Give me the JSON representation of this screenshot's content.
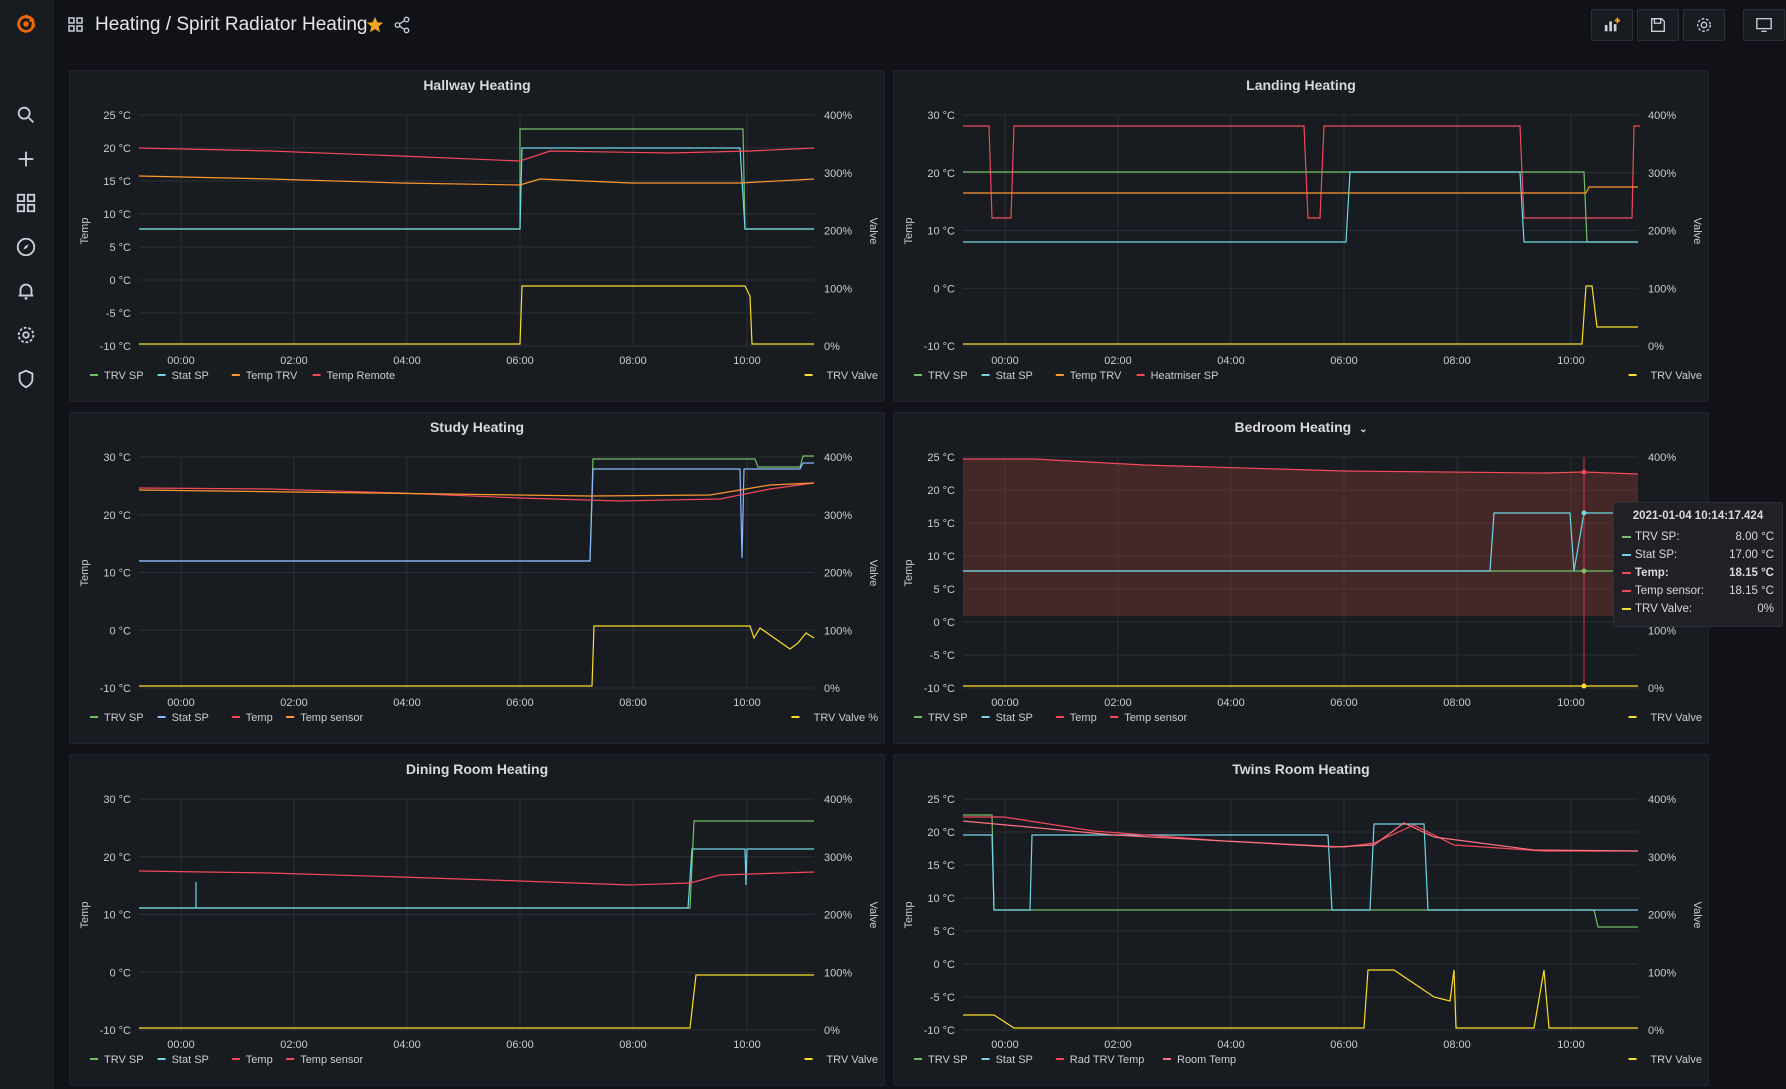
{
  "header": {
    "title": "Heating / Spirit Radiator Heating"
  },
  "colors": {
    "green": "#73bf69",
    "blue": "#8ab8ff",
    "orange": "#ff9830",
    "red": "#f2495c",
    "yellow": "#fade2a",
    "cyan": "#70d6e6",
    "salmon": "#ff7383",
    "rust": "#e0752d",
    "accent": "#f5a623",
    "grid": "#2c2f35",
    "text": "#cccccf"
  },
  "xticks": [
    "00:00",
    "02:00",
    "04:00",
    "06:00",
    "08:00",
    "10:00"
  ],
  "panels": [
    {
      "title": "Hallway Heating",
      "has_dropdown": false,
      "y_left": {
        "label": "Temp",
        "ticks": [
          "25 °C",
          "20 °C",
          "15 °C",
          "10 °C",
          "5 °C",
          "0 °C",
          "-5 °C",
          "-10 °C"
        ]
      },
      "y_right": {
        "label": "Valve",
        "ticks": [
          "400%",
          "300%",
          "200%",
          "100%",
          "0%"
        ]
      },
      "legend_left": [
        {
          "name": "TRV SP",
          "color": "green"
        },
        {
          "name": "Stat SP",
          "color": "cyan"
        },
        {
          "name": "Temp TRV",
          "color": "orange"
        },
        {
          "name": "Temp Remote",
          "color": "red"
        }
      ],
      "legend_right": [
        {
          "name": "TRV Valve",
          "color": "yellow"
        }
      ]
    },
    {
      "title": "Landing Heating",
      "has_dropdown": false,
      "y_left": {
        "label": "Temp",
        "ticks": [
          "30 °C",
          "20 °C",
          "10 °C",
          "0 °C",
          "-10 °C"
        ]
      },
      "y_right": {
        "label": "Valve",
        "ticks": [
          "400%",
          "300%",
          "200%",
          "100%",
          "0%"
        ]
      },
      "legend_left": [
        {
          "name": "TRV SP",
          "color": "green"
        },
        {
          "name": "Stat SP",
          "color": "cyan"
        },
        {
          "name": "Temp TRV",
          "color": "orange"
        },
        {
          "name": "Heatmiser SP",
          "color": "red"
        }
      ],
      "legend_right": [
        {
          "name": "TRV Valve",
          "color": "yellow"
        }
      ]
    },
    {
      "title": "Study Heating",
      "has_dropdown": false,
      "y_left": {
        "label": "Temp",
        "ticks": [
          "30 °C",
          "20 °C",
          "10 °C",
          "0 °C",
          "-10 °C"
        ]
      },
      "y_right": {
        "label": "Valve",
        "ticks": [
          "400%",
          "300%",
          "200%",
          "100%",
          "0%"
        ]
      },
      "legend_left": [
        {
          "name": "TRV SP",
          "color": "green"
        },
        {
          "name": "Stat SP",
          "color": "blue"
        },
        {
          "name": "Temp",
          "color": "red"
        },
        {
          "name": "Temp sensor",
          "color": "orange"
        }
      ],
      "legend_right": [
        {
          "name": "TRV Valve %",
          "color": "yellow"
        }
      ]
    },
    {
      "title": "Bedroom Heating",
      "has_dropdown": true,
      "y_left": {
        "label": "Temp",
        "ticks": [
          "25 °C",
          "20 °C",
          "15 °C",
          "10 °C",
          "5 °C",
          "0 °C",
          "-5 °C",
          "-10 °C"
        ]
      },
      "y_right": {
        "label": "",
        "ticks": [
          "400%",
          "300%",
          "200%",
          "100%",
          "0%"
        ]
      },
      "legend_left": [
        {
          "name": "TRV SP",
          "color": "green"
        },
        {
          "name": "Stat SP",
          "color": "cyan"
        },
        {
          "name": "Temp",
          "color": "red"
        },
        {
          "name": "Temp sensor",
          "color": "red"
        }
      ],
      "legend_right": [
        {
          "name": "TRV Valve",
          "color": "yellow"
        }
      ]
    },
    {
      "title": "Dining Room Heating",
      "has_dropdown": false,
      "y_left": {
        "label": "Temp",
        "ticks": [
          "30 °C",
          "20 °C",
          "10 °C",
          "0 °C",
          "-10 °C"
        ]
      },
      "y_right": {
        "label": "Valve",
        "ticks": [
          "400%",
          "300%",
          "200%",
          "100%",
          "0%"
        ]
      },
      "legend_left": [
        {
          "name": "TRV SP",
          "color": "green"
        },
        {
          "name": "Stat SP",
          "color": "cyan"
        },
        {
          "name": "Temp",
          "color": "red"
        },
        {
          "name": "Temp sensor",
          "color": "red"
        }
      ],
      "legend_right": [
        {
          "name": "TRV Valve",
          "color": "yellow"
        }
      ]
    },
    {
      "title": "Twins Room Heating",
      "has_dropdown": false,
      "y_left": {
        "label": "Temp",
        "ticks": [
          "25 °C",
          "20 °C",
          "15 °C",
          "10 °C",
          "5 °C",
          "0 °C",
          "-5 °C",
          "-10 °C"
        ]
      },
      "y_right": {
        "label": "Valve",
        "ticks": [
          "400%",
          "300%",
          "200%",
          "100%",
          "0%"
        ]
      },
      "legend_left": [
        {
          "name": "TRV SP",
          "color": "green"
        },
        {
          "name": "Stat SP",
          "color": "cyan"
        },
        {
          "name": "Rad TRV Temp",
          "color": "red"
        },
        {
          "name": "Room Temp",
          "color": "salmon"
        }
      ],
      "legend_right": [
        {
          "name": "TRV Valve",
          "color": "yellow"
        }
      ]
    }
  ],
  "tooltip": {
    "timestamp": "2021-01-04 10:14:17.424",
    "rows": [
      {
        "label": "TRV SP:",
        "value": "8.00 °C",
        "color": "green",
        "bold": false
      },
      {
        "label": "Stat SP:",
        "value": "17.00 °C",
        "color": "cyan",
        "bold": false
      },
      {
        "label": "Temp:",
        "value": "18.15 °C",
        "color": "red",
        "bold": true
      },
      {
        "label": "Temp sensor:",
        "value": "18.15 °C",
        "color": "red",
        "bold": false
      },
      {
        "label": "TRV Valve:",
        "value": "0%",
        "color": "yellow",
        "bold": false
      }
    ]
  }
}
